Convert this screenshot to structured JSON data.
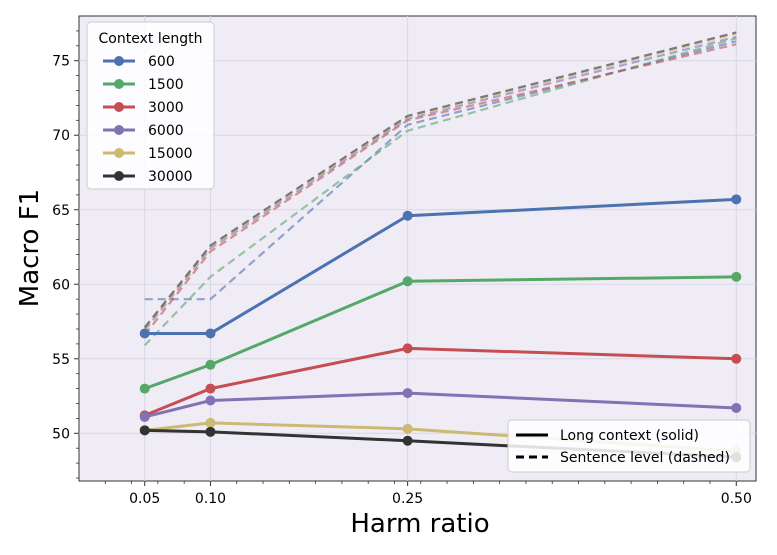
{
  "chart_data": {
    "type": "line",
    "xlabel": "Harm ratio",
    "ylabel": "Macro F1",
    "x": [
      0.05,
      0.1,
      0.25,
      0.5
    ],
    "x_tick_labels": [
      "0.05",
      "0.10",
      "0.25",
      "0.50"
    ],
    "xlim": [
      0.0,
      0.515
    ],
    "ylim": [
      46.8,
      78.0
    ],
    "y_ticks": [
      50,
      55,
      60,
      65,
      70,
      75
    ],
    "y_tick_labels": [
      "50",
      "55",
      "60",
      "65",
      "70",
      "75"
    ],
    "grid": true,
    "legend": {
      "title": "Context length",
      "location": "top-left",
      "entries": [
        "600",
        "1500",
        "3000",
        "6000",
        "15000",
        "30000"
      ]
    },
    "style_legend": {
      "location": "bottom-right",
      "entries": [
        "Long context (solid)",
        "Sentence level (dashed)"
      ]
    },
    "series": [
      {
        "name": "600",
        "color": "#4c72b0",
        "solid": [
          56.7,
          56.7,
          64.6,
          65.7
        ],
        "dashed": [
          59.0,
          59.0,
          70.7,
          76.3
        ]
      },
      {
        "name": "1500",
        "color": "#55a868",
        "solid": [
          53.0,
          54.6,
          60.2,
          60.5
        ],
        "dashed": [
          55.9,
          60.5,
          70.3,
          76.5
        ]
      },
      {
        "name": "3000",
        "color": "#c44e52",
        "solid": [
          51.2,
          53.0,
          55.7,
          55.0
        ],
        "dashed": [
          56.6,
          62.2,
          71.0,
          76.1
        ]
      },
      {
        "name": "6000",
        "color": "#8172b3",
        "solid": [
          51.1,
          52.2,
          52.7,
          51.7
        ],
        "dashed": [
          56.9,
          62.4,
          71.1,
          76.6
        ]
      },
      {
        "name": "15000",
        "color": "#ccb974",
        "solid": [
          50.2,
          50.7,
          50.3,
          48.8
        ],
        "dashed": [
          57.0,
          62.5,
          71.2,
          76.8
        ]
      },
      {
        "name": "30000",
        "color": "#333333",
        "solid": [
          50.2,
          50.1,
          49.5,
          48.4
        ],
        "dashed": [
          57.1,
          62.6,
          71.3,
          76.9
        ]
      }
    ]
  }
}
